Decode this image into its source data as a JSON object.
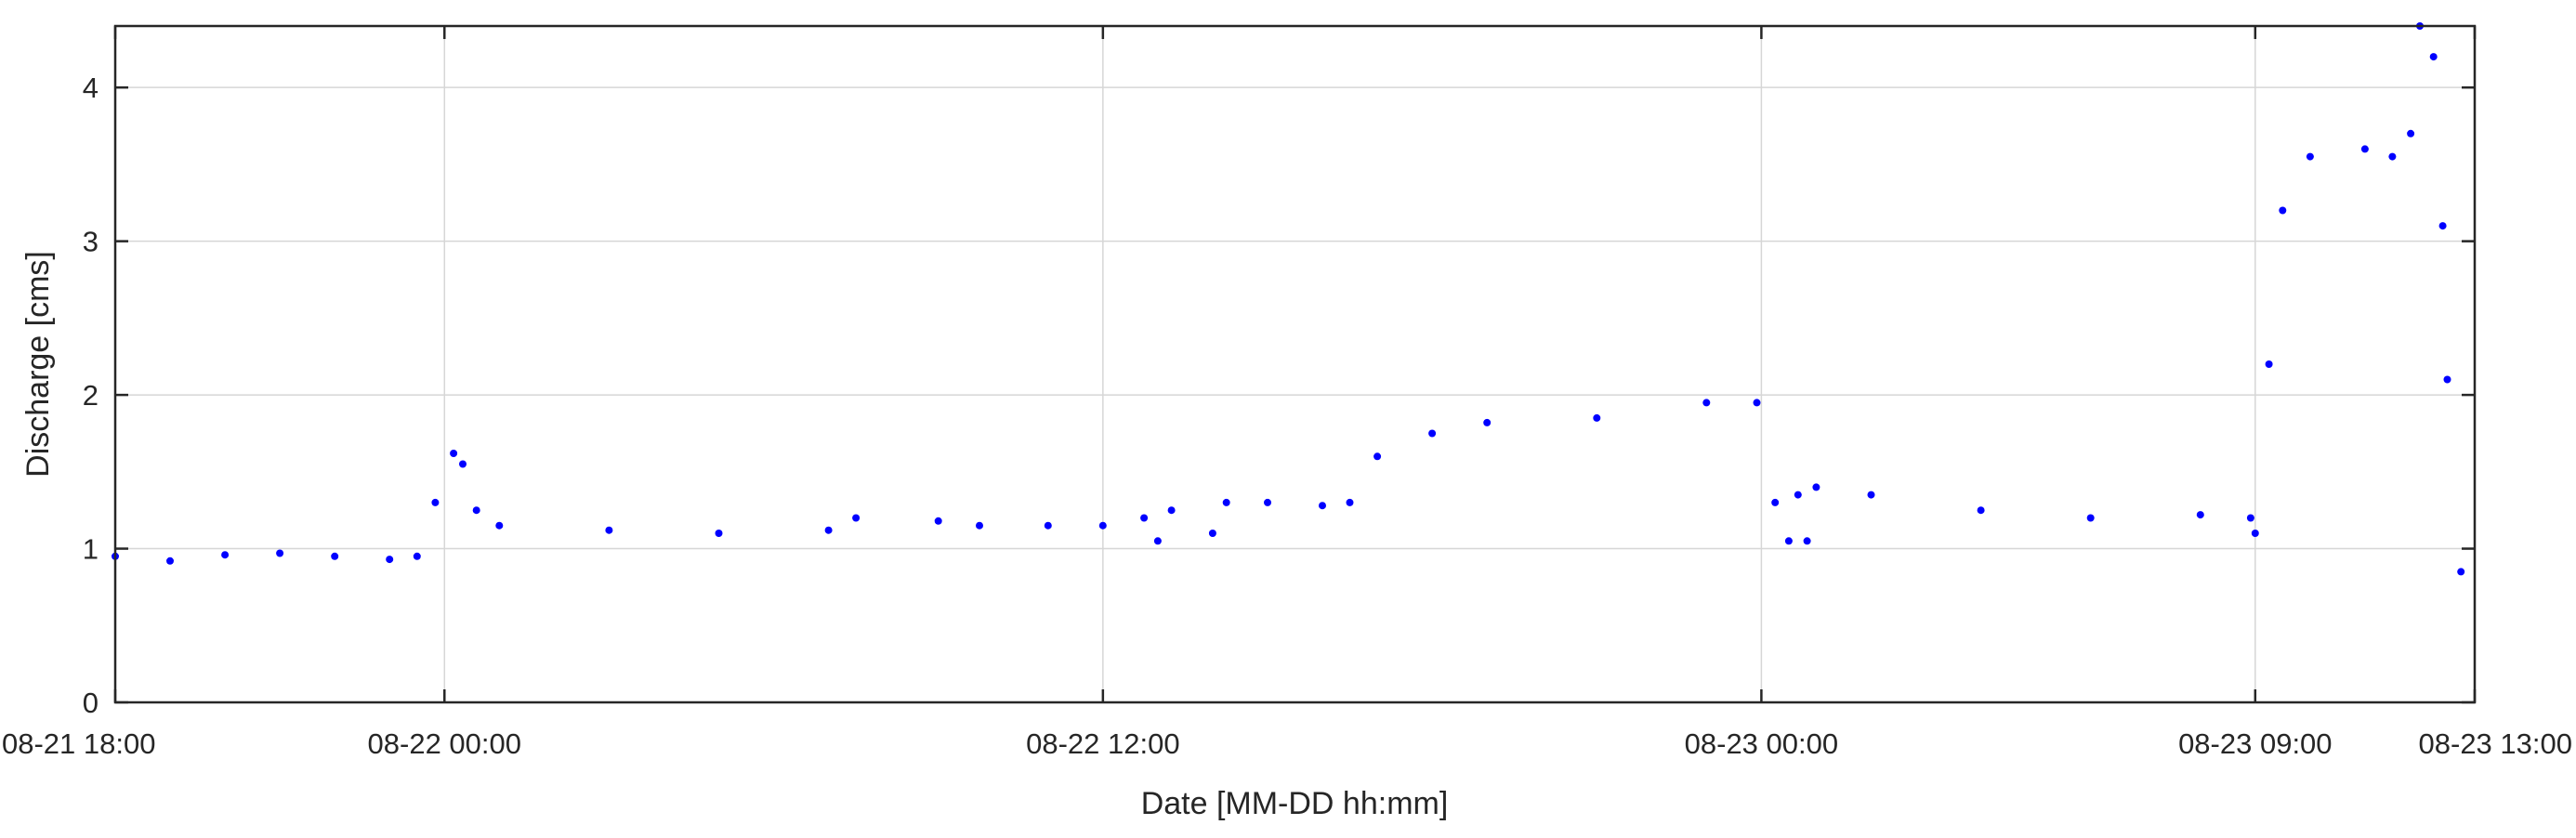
{
  "chart_data": {
    "type": "scatter",
    "title": "",
    "xlabel": "Date [MM-DD hh:mm]",
    "ylabel": "Discharge [cms]",
    "x_unit": "hours",
    "x_range_hours": [
      0,
      43
    ],
    "xlim": [
      "08-21 18:00",
      "08-23 13:00"
    ],
    "ylim": [
      0,
      4.4
    ],
    "x_ticks": [
      {
        "label": "08-21 18:00",
        "value": "08-21 18:00"
      },
      {
        "label": "08-22 00:00",
        "value": "08-22 00:00"
      },
      {
        "label": "08-22 12:00",
        "value": "08-22 12:00"
      },
      {
        "label": "08-23 00:00",
        "value": "08-23 00:00"
      },
      {
        "label": "08-23 09:00",
        "value": "08-23 09:00"
      },
      {
        "label": "08-23 13:00",
        "value": "08-23 13:00"
      }
    ],
    "y_ticks": [
      0,
      1,
      2,
      3,
      4
    ],
    "grid": true,
    "marker_color": "#0000ff",
    "series": [
      {
        "values": [
          [
            "08-21 18:00",
            0.95
          ],
          [
            "08-21 19:00",
            0.92
          ],
          [
            "08-21 20:00",
            0.96
          ],
          [
            "08-21 21:00",
            0.97
          ],
          [
            "08-21 22:00",
            0.95
          ],
          [
            "08-21 23:00",
            0.93
          ],
          [
            "08-21 23:30",
            0.95
          ],
          [
            "08-21 23:50",
            1.3
          ],
          [
            "08-22 00:10",
            1.62
          ],
          [
            "08-22 00:20",
            1.55
          ],
          [
            "08-22 00:35",
            1.25
          ],
          [
            "08-22 01:00",
            1.15
          ],
          [
            "08-22 03:00",
            1.12
          ],
          [
            "08-22 05:00",
            1.1
          ],
          [
            "08-22 07:00",
            1.12
          ],
          [
            "08-22 07:30",
            1.2
          ],
          [
            "08-22 09:00",
            1.18
          ],
          [
            "08-22 09:45",
            1.15
          ],
          [
            "08-22 11:00",
            1.15
          ],
          [
            "08-22 12:00",
            1.15
          ],
          [
            "08-22 12:45",
            1.2
          ],
          [
            "08-22 13:00",
            1.05
          ],
          [
            "08-22 13:15",
            1.25
          ],
          [
            "08-22 14:00",
            1.1
          ],
          [
            "08-22 14:15",
            1.3
          ],
          [
            "08-22 15:00",
            1.3
          ],
          [
            "08-22 16:00",
            1.28
          ],
          [
            "08-22 16:30",
            1.3
          ],
          [
            "08-22 17:00",
            1.6
          ],
          [
            "08-22 18:00",
            1.75
          ],
          [
            "08-22 19:00",
            1.82
          ],
          [
            "08-22 21:00",
            1.85
          ],
          [
            "08-22 23:00",
            1.95
          ],
          [
            "08-22 23:55",
            1.95
          ],
          [
            "08-23 00:15",
            1.3
          ],
          [
            "08-23 00:30",
            1.05
          ],
          [
            "08-23 00:40",
            1.35
          ],
          [
            "08-23 00:50",
            1.05
          ],
          [
            "08-23 01:00",
            1.4
          ],
          [
            "08-23 02:00",
            1.35
          ],
          [
            "08-23 04:00",
            1.25
          ],
          [
            "08-23 06:00",
            1.2
          ],
          [
            "08-23 08:00",
            1.22
          ],
          [
            "08-23 08:55",
            1.2
          ],
          [
            "08-23 09:00",
            1.1
          ],
          [
            "08-23 09:15",
            2.2
          ],
          [
            "08-23 09:30",
            3.2
          ],
          [
            "08-23 10:00",
            3.55
          ],
          [
            "08-23 11:00",
            3.6
          ],
          [
            "08-23 11:30",
            3.55
          ],
          [
            "08-23 11:50",
            3.7
          ],
          [
            "08-23 12:00",
            4.4
          ],
          [
            "08-23 12:15",
            4.2
          ],
          [
            "08-23 12:25",
            3.1
          ],
          [
            "08-23 12:30",
            2.1
          ],
          [
            "08-23 12:45",
            0.85
          ]
        ]
      }
    ]
  }
}
